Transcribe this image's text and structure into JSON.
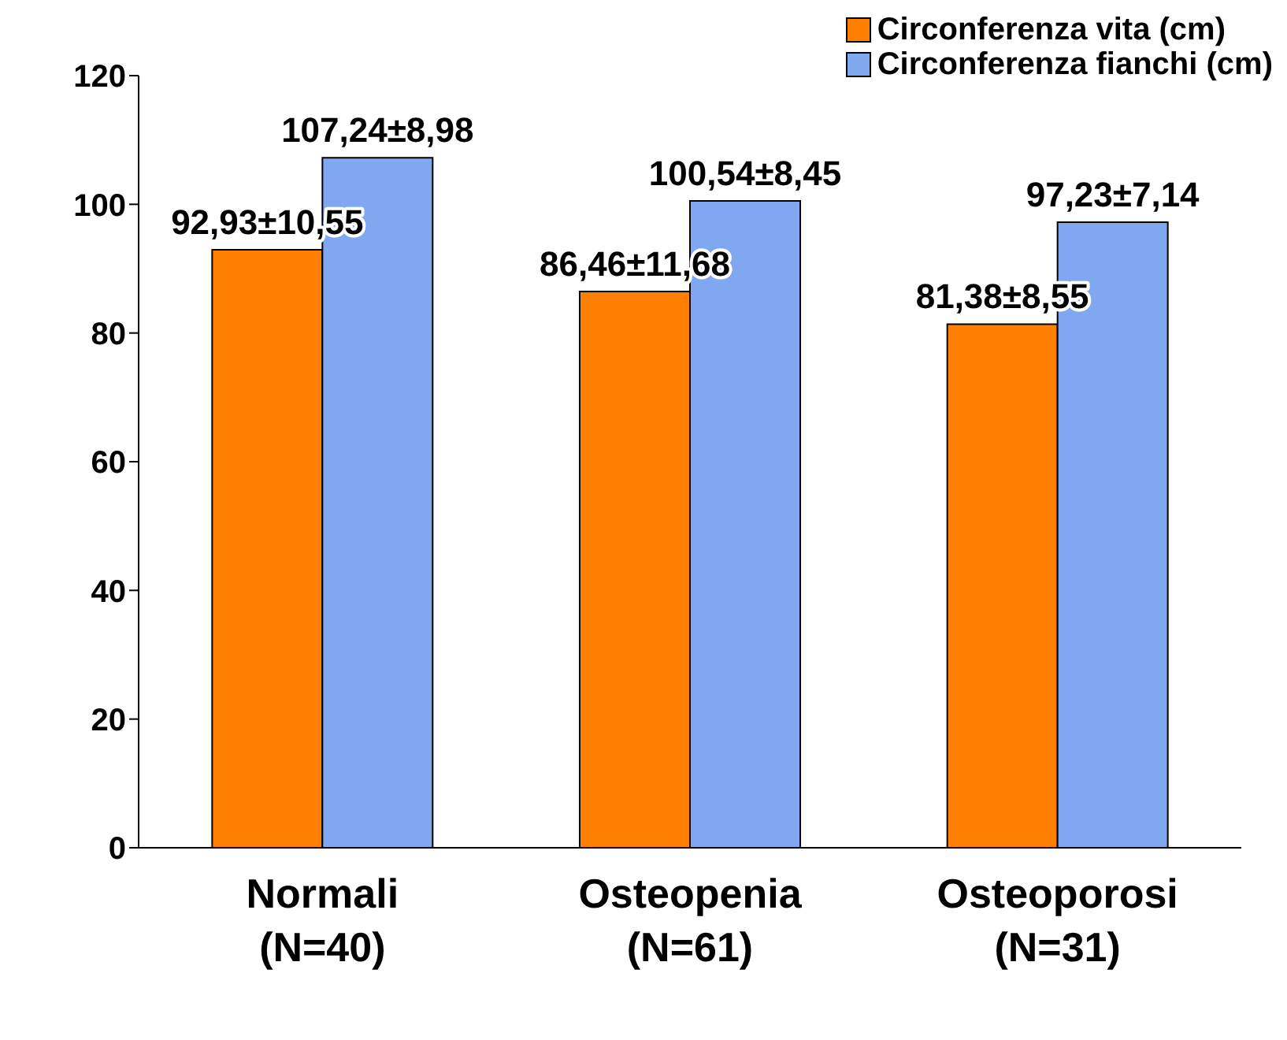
{
  "chart_data": {
    "type": "bar",
    "categories": [
      "Normali\n(N=40)",
      "Osteopenia\n(N=61)",
      "Osteoporosi\n(N=31)"
    ],
    "series": [
      {
        "name": "Circonferenza vita (cm)",
        "color": "#ff8000",
        "values": [
          92.93,
          86.46,
          81.38
        ],
        "value_labels": [
          "92,93±10,55",
          "86,46±11,68",
          "81,38±8,55"
        ]
      },
      {
        "name": "Circonferenza fianchi (cm)",
        "color": "#7fa8f0",
        "values": [
          107.24,
          100.54,
          97.23
        ],
        "value_labels": [
          "107,24±8,98",
          "100,54±8,45",
          "97,23±7,14"
        ]
      }
    ],
    "ylim": [
      0,
      120
    ],
    "yticks": [
      0,
      20,
      40,
      60,
      80,
      100,
      120
    ],
    "grid": false,
    "legend": "top right"
  }
}
